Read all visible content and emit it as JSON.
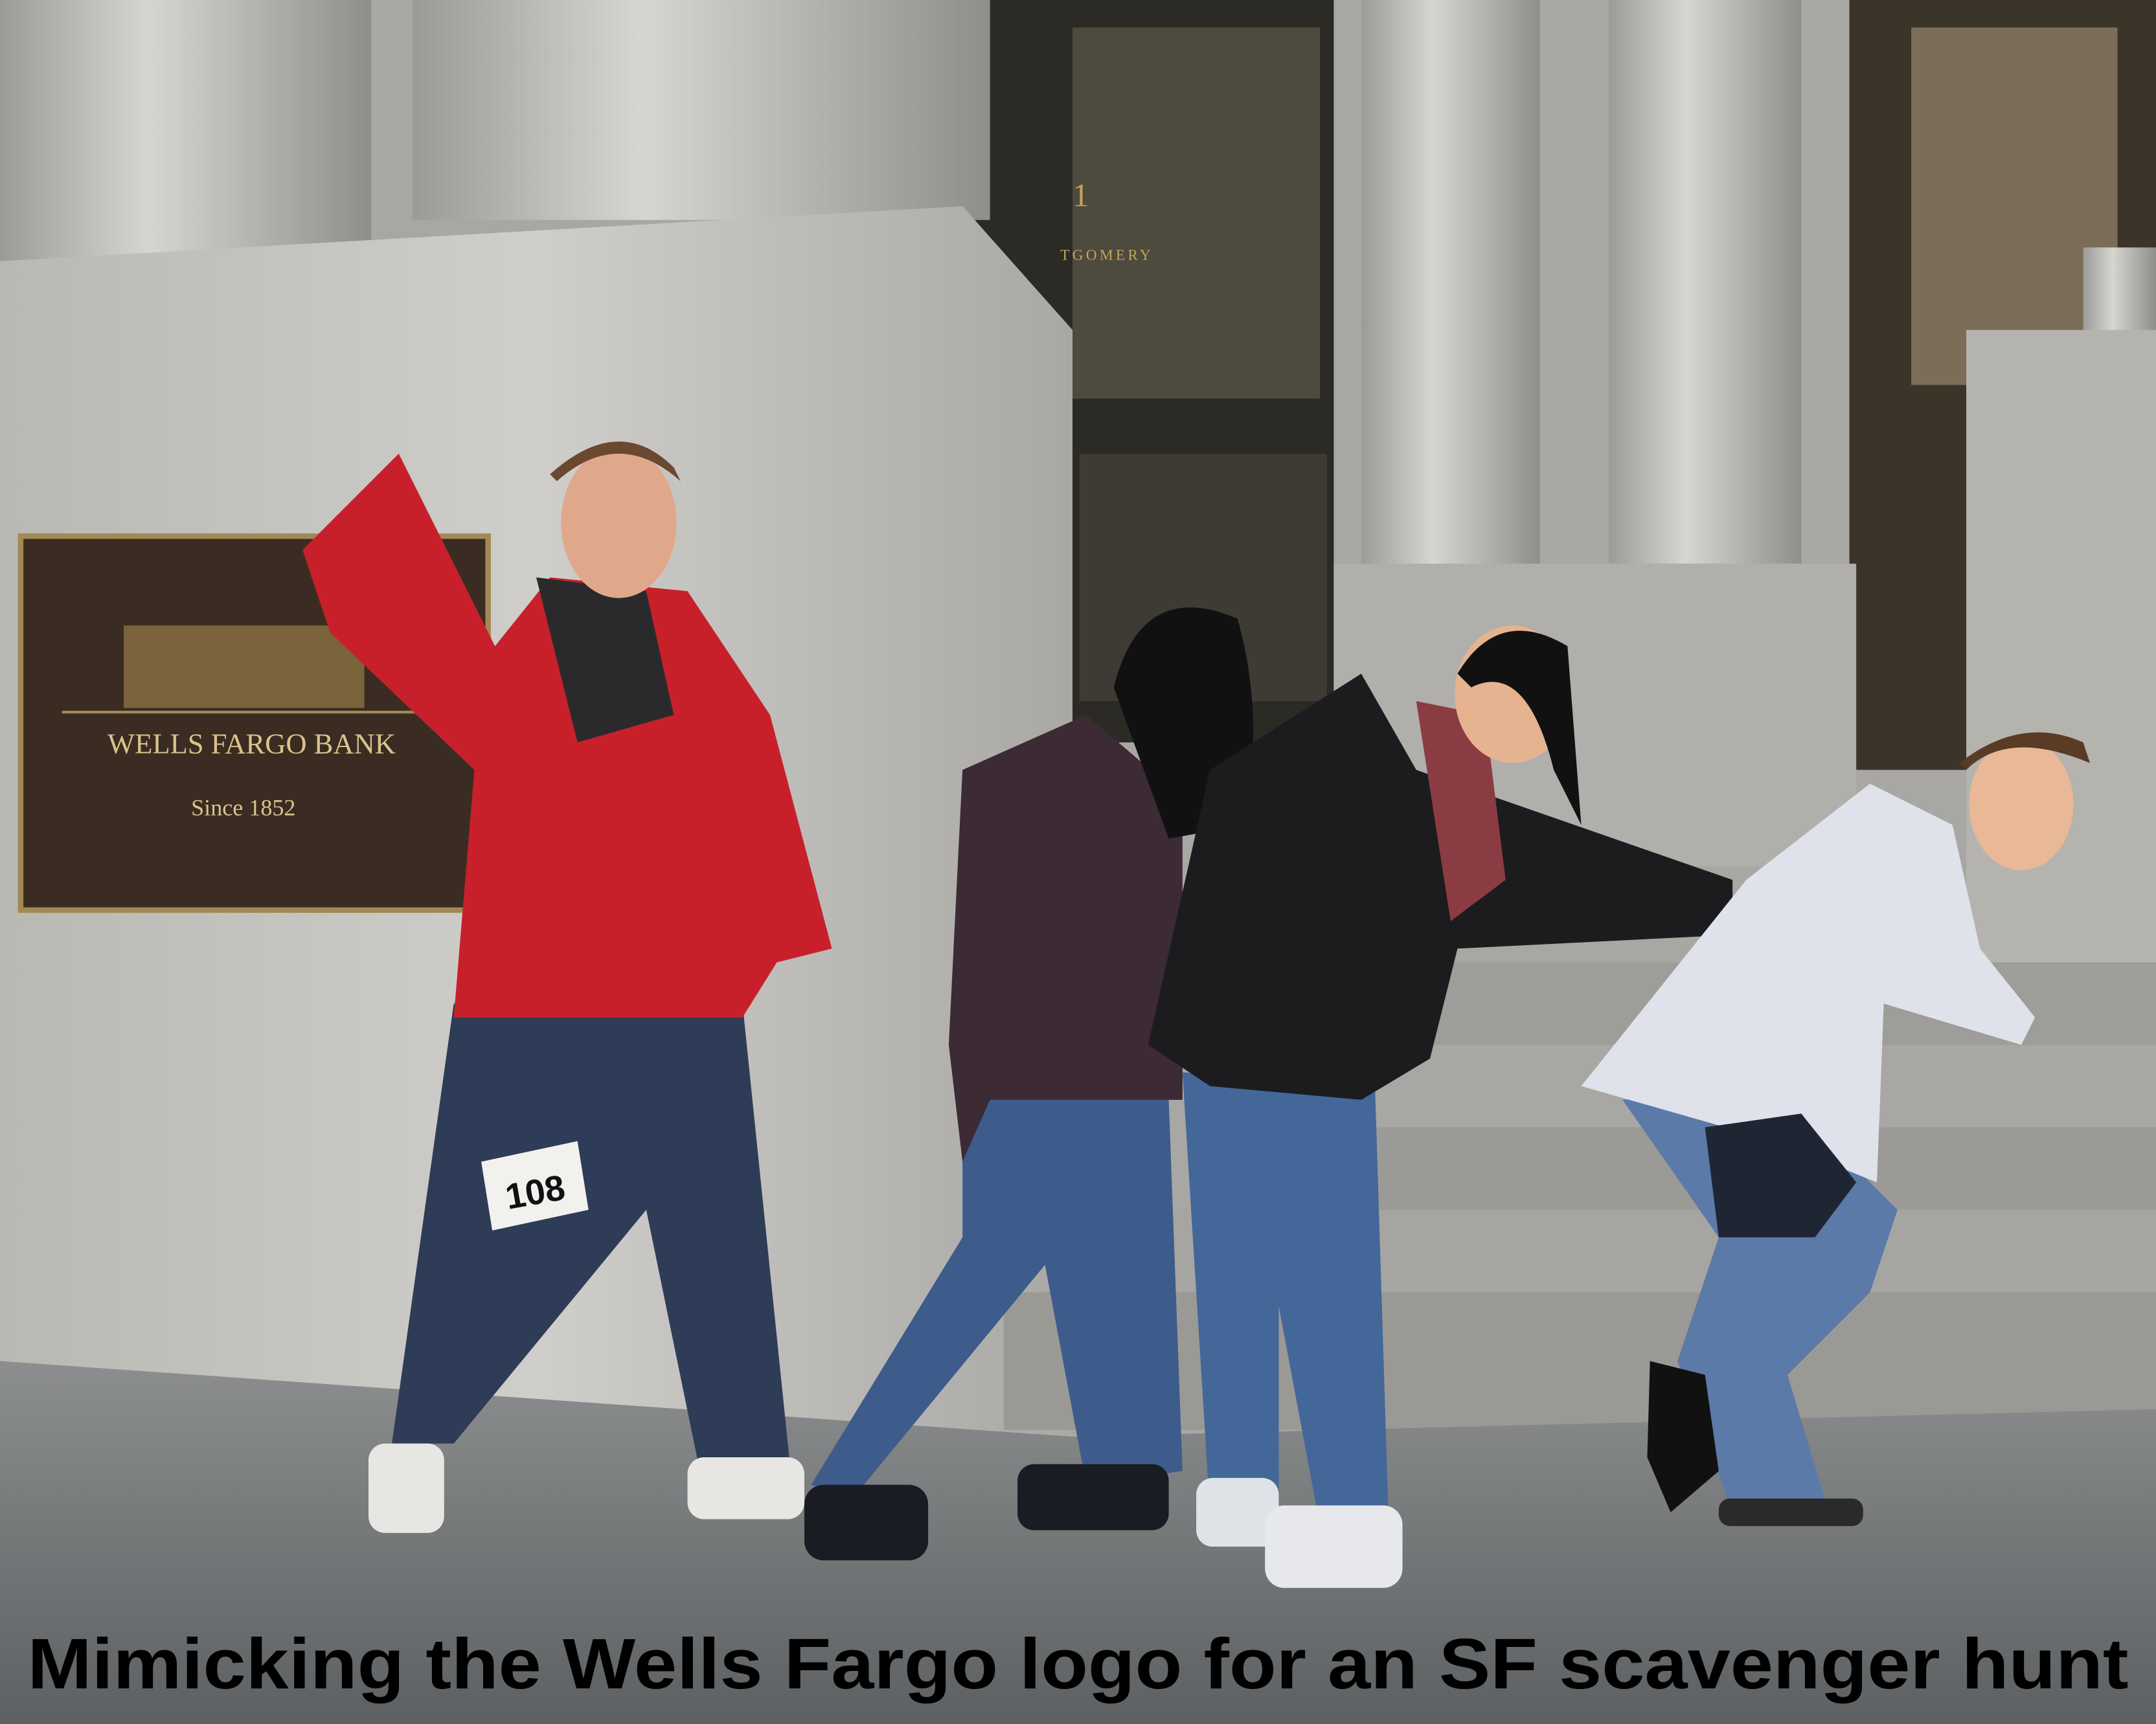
{
  "caption": "Mimicking the Wells Fargo logo for an SF scavenger hunt",
  "plaque": {
    "name": "WELLS FARGO BANK",
    "since": "Since 1852"
  },
  "building_number": "1",
  "signage": "TGOMERY",
  "race_bib": "108"
}
